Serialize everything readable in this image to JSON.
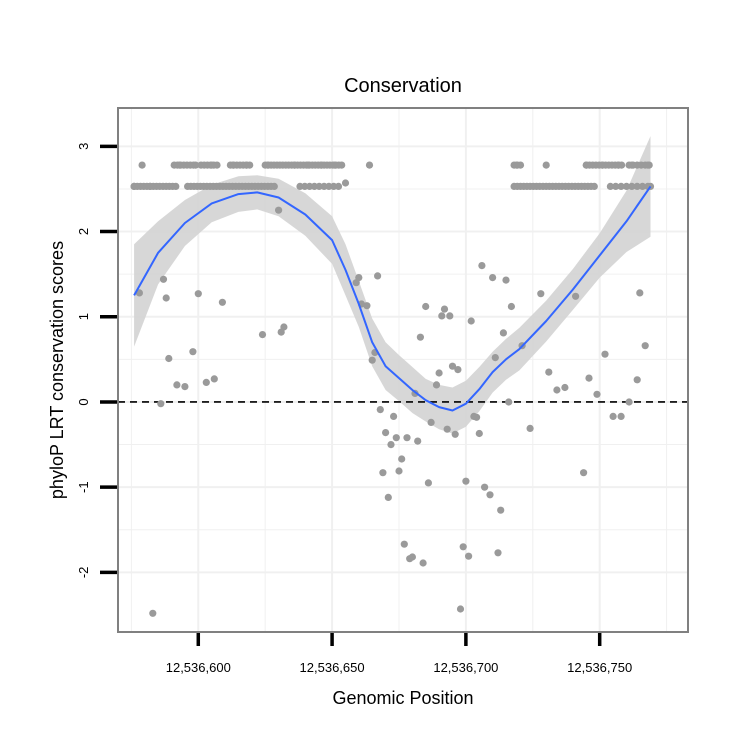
{
  "chart_data": {
    "type": "scatter",
    "title": "Conservation",
    "xlabel": "Genomic Position",
    "ylabel": "phyloP LRT conservation scores",
    "xlim": [
      12536570,
      12536783
    ],
    "ylim": [
      -2.7,
      3.45
    ],
    "x_ticks": [
      12536600,
      12536650,
      12536700,
      12536750
    ],
    "x_tick_labels": [
      "12,536,600",
      "12,536,650",
      "12,536,700",
      "12,536,750"
    ],
    "y_ticks": [
      -2,
      -1,
      0,
      1,
      2,
      3
    ],
    "y_tick_labels": [
      "-2",
      "-1",
      "0",
      "1",
      "2",
      "3"
    ],
    "reference_line": {
      "y": 0,
      "style": "dashed"
    },
    "colors": {
      "points": "#9a9a9a",
      "smooth": "#3366ff",
      "ribbon": "#d3d3d3",
      "panel_border": "#808080",
      "grid": "#f0f0f0"
    },
    "points": [
      [
        12536576,
        2.53
      ],
      [
        12536578,
        1.28
      ],
      [
        12536579,
        2.78
      ],
      [
        12536582,
        2.53
      ],
      [
        12536583,
        -2.48
      ],
      [
        12536586,
        -0.02
      ],
      [
        12536587,
        1.44
      ],
      [
        12536588,
        1.22
      ],
      [
        12536589,
        0.51
      ],
      [
        12536592,
        0.2
      ],
      [
        12536593,
        2.78
      ],
      [
        12536595,
        0.18
      ],
      [
        12536598,
        0.59
      ],
      [
        12536599,
        2.78
      ],
      [
        12536600,
        1.27
      ],
      [
        12536603,
        0.23
      ],
      [
        12536605,
        2.78
      ],
      [
        12536606,
        0.27
      ],
      [
        12536609,
        1.17
      ],
      [
        12536613,
        2.78
      ],
      [
        12536618,
        2.78
      ],
      [
        12536624,
        0.79
      ],
      [
        12536626,
        2.78
      ],
      [
        12536630,
        2.25
      ],
      [
        12536631,
        0.82
      ],
      [
        12536632,
        0.88
      ],
      [
        12536636,
        2.78
      ],
      [
        12536641,
        2.78
      ],
      [
        12536646,
        2.78
      ],
      [
        12536651,
        2.78
      ],
      [
        12536655,
        2.57
      ],
      [
        12536659,
        1.4
      ],
      [
        12536660,
        1.46
      ],
      [
        12536661,
        1.15
      ],
      [
        12536663,
        1.13
      ],
      [
        12536664,
        2.78
      ],
      [
        12536665,
        0.49
      ],
      [
        12536666,
        0.58
      ],
      [
        12536667,
        1.48
      ],
      [
        12536668,
        -0.09
      ],
      [
        12536669,
        -0.83
      ],
      [
        12536670,
        -0.36
      ],
      [
        12536671,
        -1.12
      ],
      [
        12536672,
        -0.5
      ],
      [
        12536673,
        -0.17
      ],
      [
        12536674,
        -0.42
      ],
      [
        12536675,
        -0.81
      ],
      [
        12536676,
        -0.67
      ],
      [
        12536677,
        -1.67
      ],
      [
        12536678,
        -0.42
      ],
      [
        12536679,
        -1.84
      ],
      [
        12536680,
        -1.82
      ],
      [
        12536681,
        0.1
      ],
      [
        12536682,
        -0.46
      ],
      [
        12536683,
        0.76
      ],
      [
        12536684,
        -1.89
      ],
      [
        12536685,
        1.12
      ],
      [
        12536686,
        -0.95
      ],
      [
        12536687,
        -0.24
      ],
      [
        12536689,
        0.2
      ],
      [
        12536690,
        0.34
      ],
      [
        12536691,
        1.01
      ],
      [
        12536692,
        1.09
      ],
      [
        12536693,
        -0.32
      ],
      [
        12536694,
        1.01
      ],
      [
        12536695,
        0.42
      ],
      [
        12536696,
        -0.38
      ],
      [
        12536697,
        0.38
      ],
      [
        12536698,
        -2.43
      ],
      [
        12536699,
        -1.7
      ],
      [
        12536700,
        -0.93
      ],
      [
        12536701,
        -1.81
      ],
      [
        12536702,
        0.95
      ],
      [
        12536703,
        -0.17
      ],
      [
        12536704,
        -0.18
      ],
      [
        12536705,
        -0.37
      ],
      [
        12536706,
        1.6
      ],
      [
        12536707,
        -1.0
      ],
      [
        12536709,
        -1.09
      ],
      [
        12536710,
        1.46
      ],
      [
        12536711,
        0.52
      ],
      [
        12536712,
        -1.77
      ],
      [
        12536713,
        -1.27
      ],
      [
        12536714,
        0.81
      ],
      [
        12536715,
        1.43
      ],
      [
        12536716,
        0.0
      ],
      [
        12536717,
        1.12
      ],
      [
        12536719,
        2.78
      ],
      [
        12536721,
        0.66
      ],
      [
        12536724,
        -0.31
      ],
      [
        12536728,
        1.27
      ],
      [
        12536730,
        2.78
      ],
      [
        12536731,
        0.35
      ],
      [
        12536734,
        0.14
      ],
      [
        12536737,
        0.17
      ],
      [
        12536741,
        1.24
      ],
      [
        12536744,
        -0.83
      ],
      [
        12536745,
        2.78
      ],
      [
        12536746,
        0.28
      ],
      [
        12536749,
        0.09
      ],
      [
        12536751,
        2.78
      ],
      [
        12536752,
        0.56
      ],
      [
        12536755,
        -0.17
      ],
      [
        12536757,
        2.78
      ],
      [
        12536758,
        -0.17
      ],
      [
        12536761,
        0.0
      ],
      [
        12536762,
        2.78
      ],
      [
        12536764,
        0.26
      ],
      [
        12536765,
        1.28
      ],
      [
        12536767,
        0.66
      ],
      [
        12536768,
        2.78
      ],
      [
        12536769,
        2.53
      ]
    ],
    "upper_band_segments": [
      {
        "y": 2.53,
        "x_from": 12536576,
        "x_to": 12536592,
        "step": 1.2
      },
      {
        "y": 2.53,
        "x_from": 12536596,
        "x_to": 12536629,
        "step": 1.2
      },
      {
        "y": 2.53,
        "x_from": 12536638,
        "x_to": 12536654,
        "step": 1.8
      },
      {
        "y": 2.53,
        "x_from": 12536718,
        "x_to": 12536749,
        "step": 1.2
      },
      {
        "y": 2.53,
        "x_from": 12536754,
        "x_to": 12536769,
        "step": 2.0
      },
      {
        "y": 2.78,
        "x_from": 12536591,
        "x_to": 12536599,
        "step": 1.2
      },
      {
        "y": 2.78,
        "x_from": 12536601,
        "x_to": 12536607,
        "step": 1.2
      },
      {
        "y": 2.78,
        "x_from": 12536612,
        "x_to": 12536620,
        "step": 1.2
      },
      {
        "y": 2.78,
        "x_from": 12536625,
        "x_to": 12536654,
        "step": 1.1
      },
      {
        "y": 2.78,
        "x_from": 12536718,
        "x_to": 12536721,
        "step": 1.2
      },
      {
        "y": 2.78,
        "x_from": 12536745,
        "x_to": 12536759,
        "step": 1.2
      },
      {
        "y": 2.78,
        "x_from": 12536761,
        "x_to": 12536769,
        "step": 1.5
      }
    ],
    "smooth": {
      "method": "loess",
      "x": [
        12536576,
        12536585,
        12536595,
        12536605,
        12536615,
        12536622,
        12536630,
        12536640,
        12536650,
        12536655,
        12536660,
        12536665,
        12536670,
        12536675,
        12536680,
        12536685,
        12536690,
        12536695,
        12536700,
        12536705,
        12536710,
        12536715,
        12536720,
        12536730,
        12536740,
        12536750,
        12536760,
        12536769
      ],
      "y": [
        1.25,
        1.75,
        2.1,
        2.33,
        2.44,
        2.46,
        2.4,
        2.2,
        1.9,
        1.55,
        1.15,
        0.7,
        0.42,
        0.28,
        0.14,
        0.02,
        -0.06,
        -0.1,
        -0.02,
        0.15,
        0.35,
        0.5,
        0.62,
        0.95,
        1.32,
        1.72,
        2.12,
        2.53
      ],
      "upper": [
        1.85,
        2.12,
        2.37,
        2.55,
        2.65,
        2.66,
        2.62,
        2.45,
        2.18,
        1.85,
        1.42,
        0.98,
        0.7,
        0.55,
        0.41,
        0.27,
        0.2,
        0.17,
        0.25,
        0.41,
        0.59,
        0.74,
        0.87,
        1.19,
        1.56,
        1.98,
        2.48,
        3.12
      ],
      "lower": [
        0.65,
        1.38,
        1.83,
        2.11,
        2.23,
        2.26,
        2.18,
        1.95,
        1.62,
        1.25,
        0.88,
        0.42,
        0.14,
        0.01,
        -0.13,
        -0.23,
        -0.32,
        -0.37,
        -0.29,
        -0.11,
        0.11,
        0.26,
        0.37,
        0.71,
        1.08,
        1.46,
        1.76,
        1.94
      ]
    }
  }
}
